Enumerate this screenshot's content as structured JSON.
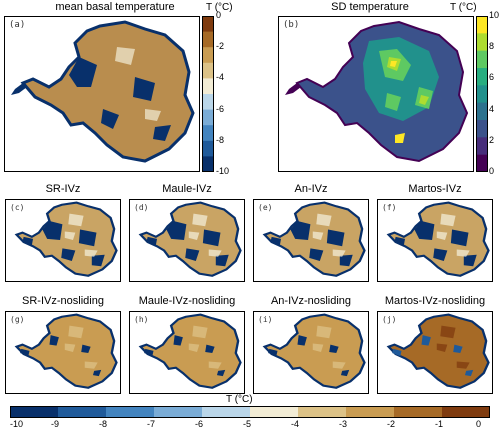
{
  "top_left": {
    "title": "mean basal temperature",
    "label": "(a)",
    "colorbar": {
      "title": "T (°C)",
      "ticks": [
        "0",
        "-2",
        "-4",
        "-6",
        "-8",
        "-10"
      ]
    }
  },
  "top_right": {
    "title": "SD temperature",
    "label": "(b)",
    "colorbar": {
      "title": "T (°C)",
      "ticks": [
        "10",
        "8",
        "6",
        "4",
        "2",
        "0"
      ]
    }
  },
  "panels": [
    {
      "title": "SR-IVz",
      "label": "(c)",
      "variant": "cold"
    },
    {
      "title": "Maule-IVz",
      "label": "(d)",
      "variant": "cold"
    },
    {
      "title": "An-IVz",
      "label": "(e)",
      "variant": "cold"
    },
    {
      "title": "Martos-IVz",
      "label": "(f)",
      "variant": "cold"
    },
    {
      "title": "SR-IVz-nosliding",
      "label": "(g)",
      "variant": "warm"
    },
    {
      "title": "Maule-IVz-nosliding",
      "label": "(h)",
      "variant": "warm"
    },
    {
      "title": "An-IVz-nosliding",
      "label": "(i)",
      "variant": "warm"
    },
    {
      "title": "Martos-IVz-nosliding",
      "label": "(j)",
      "variant": "hot"
    }
  ],
  "bottom_colorbar": {
    "title": "T (°C)",
    "ticks": [
      "-10",
      "-9",
      "-8",
      "-7",
      "-6",
      "-5",
      "-4",
      "-3",
      "-2",
      "-1",
      "0"
    ]
  },
  "colors": {
    "temperature_scale": [
      "#08306b",
      "#1f5a9a",
      "#4384bf",
      "#7aacd6",
      "#bad6e9",
      "#f2ecd5",
      "#dcc287",
      "#c99c52",
      "#a66a26",
      "#7f3b0f"
    ],
    "sd_scale": [
      "#440154",
      "#472d7b",
      "#3b528b",
      "#2c728e",
      "#21918c",
      "#28ae80",
      "#5ec962",
      "#addc30",
      "#fde725"
    ]
  }
}
